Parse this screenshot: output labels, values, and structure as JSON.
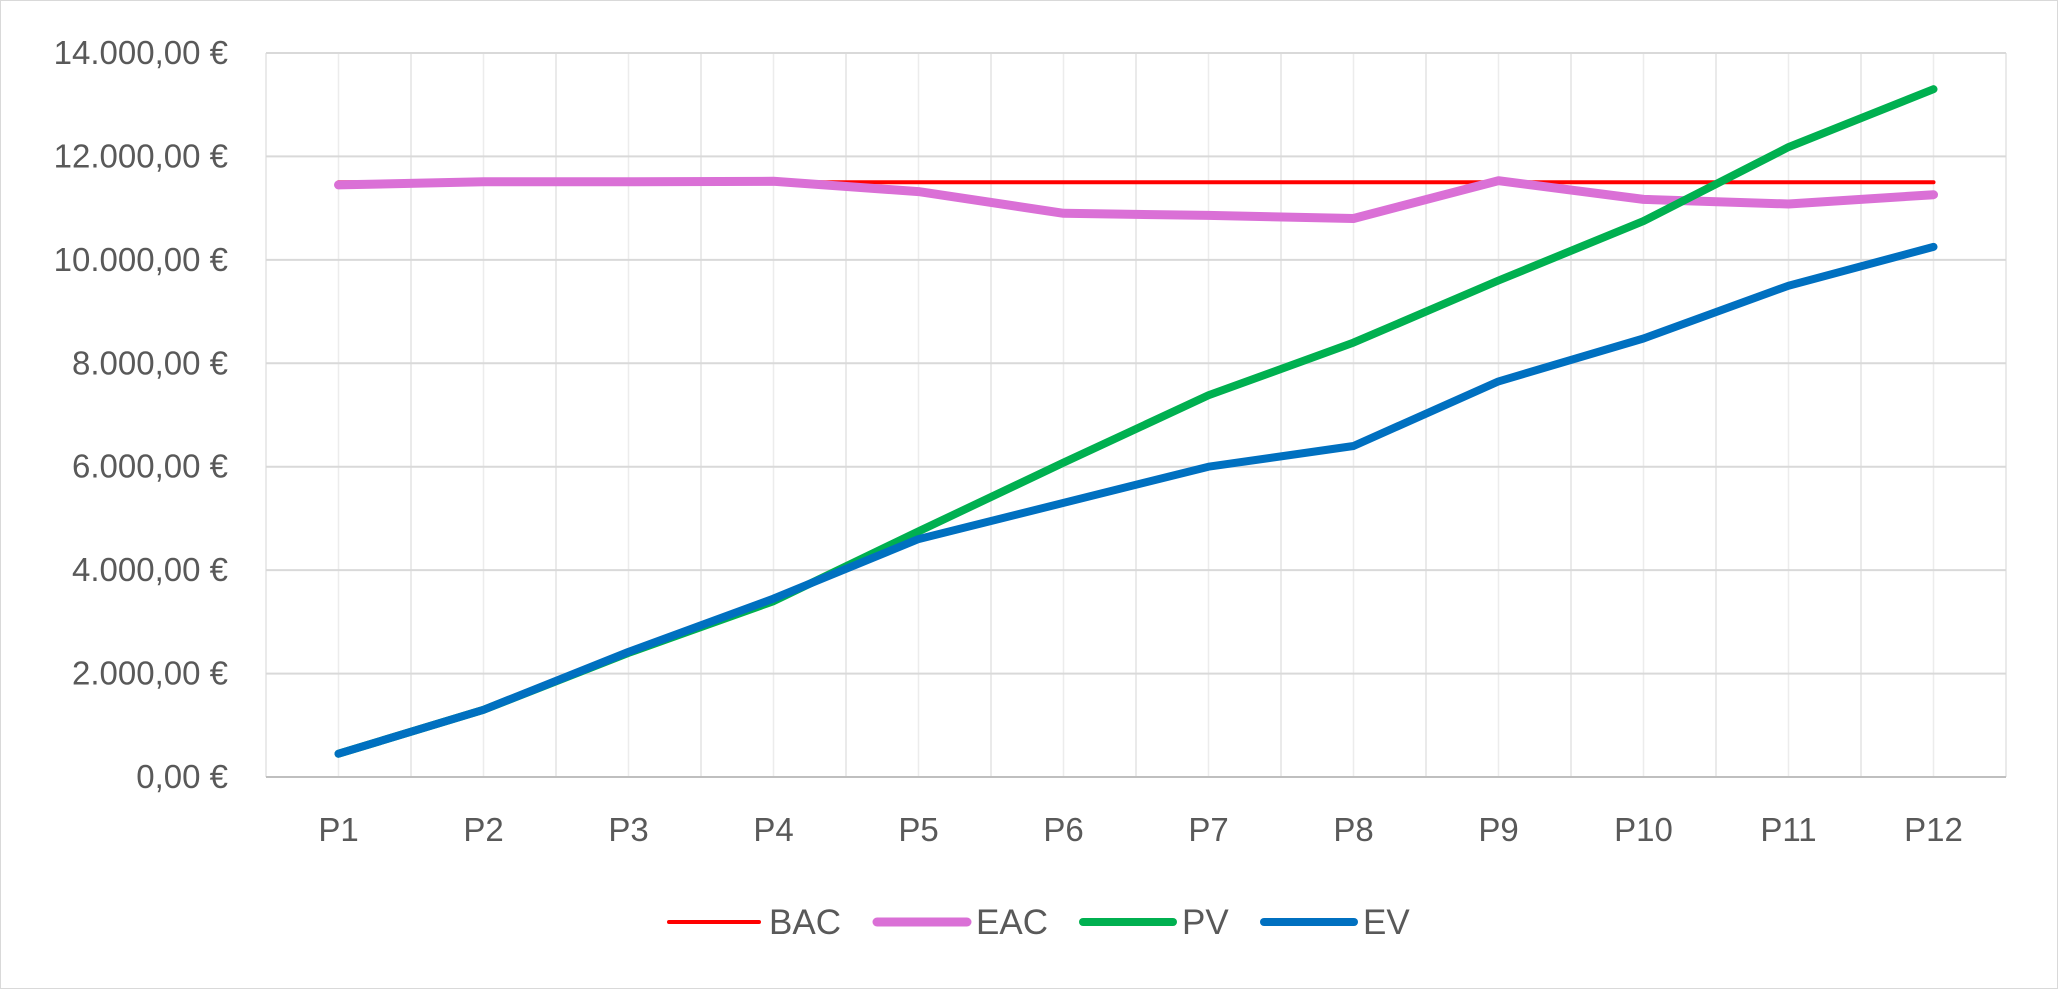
{
  "chart_data": {
    "type": "line",
    "title": "",
    "xlabel": "",
    "ylabel": "",
    "categories": [
      "P1",
      "P2",
      "P3",
      "P4",
      "P5",
      "P6",
      "P7",
      "P8",
      "P9",
      "P10",
      "P11",
      "P12"
    ],
    "ylim": [
      0,
      14000
    ],
    "yticks": [
      0,
      2000,
      4000,
      6000,
      8000,
      10000,
      12000,
      14000
    ],
    "ytick_labels": [
      "0,00 €",
      "2.000,00 €",
      "4.000,00 €",
      "6.000,00 €",
      "8.000,00 €",
      "10.000,00 €",
      "12.000,00 €",
      "14.000,00 €"
    ],
    "grid": true,
    "legend_position": "bottom",
    "series": [
      {
        "name": "BAC",
        "color": "#ff0000",
        "values": [
          11500,
          11500,
          11500,
          11500,
          11500,
          11500,
          11500,
          11500,
          11500,
          11500,
          11500,
          11500
        ]
      },
      {
        "name": "EAC",
        "color": "#da70d6",
        "values": [
          11450,
          11510,
          11510,
          11520,
          11320,
          10900,
          10860,
          10800,
          11530,
          11170,
          11080,
          11260
        ]
      },
      {
        "name": "PV",
        "color": "#00b050",
        "values": [
          450,
          1300,
          2400,
          3400,
          4750,
          6080,
          7380,
          8400,
          9600,
          10750,
          12180,
          13300
        ]
      },
      {
        "name": "EV",
        "color": "#0070c0",
        "values": [
          450,
          1300,
          2420,
          3450,
          4600,
          5300,
          6000,
          6400,
          7650,
          8480,
          9500,
          10250
        ]
      }
    ]
  }
}
